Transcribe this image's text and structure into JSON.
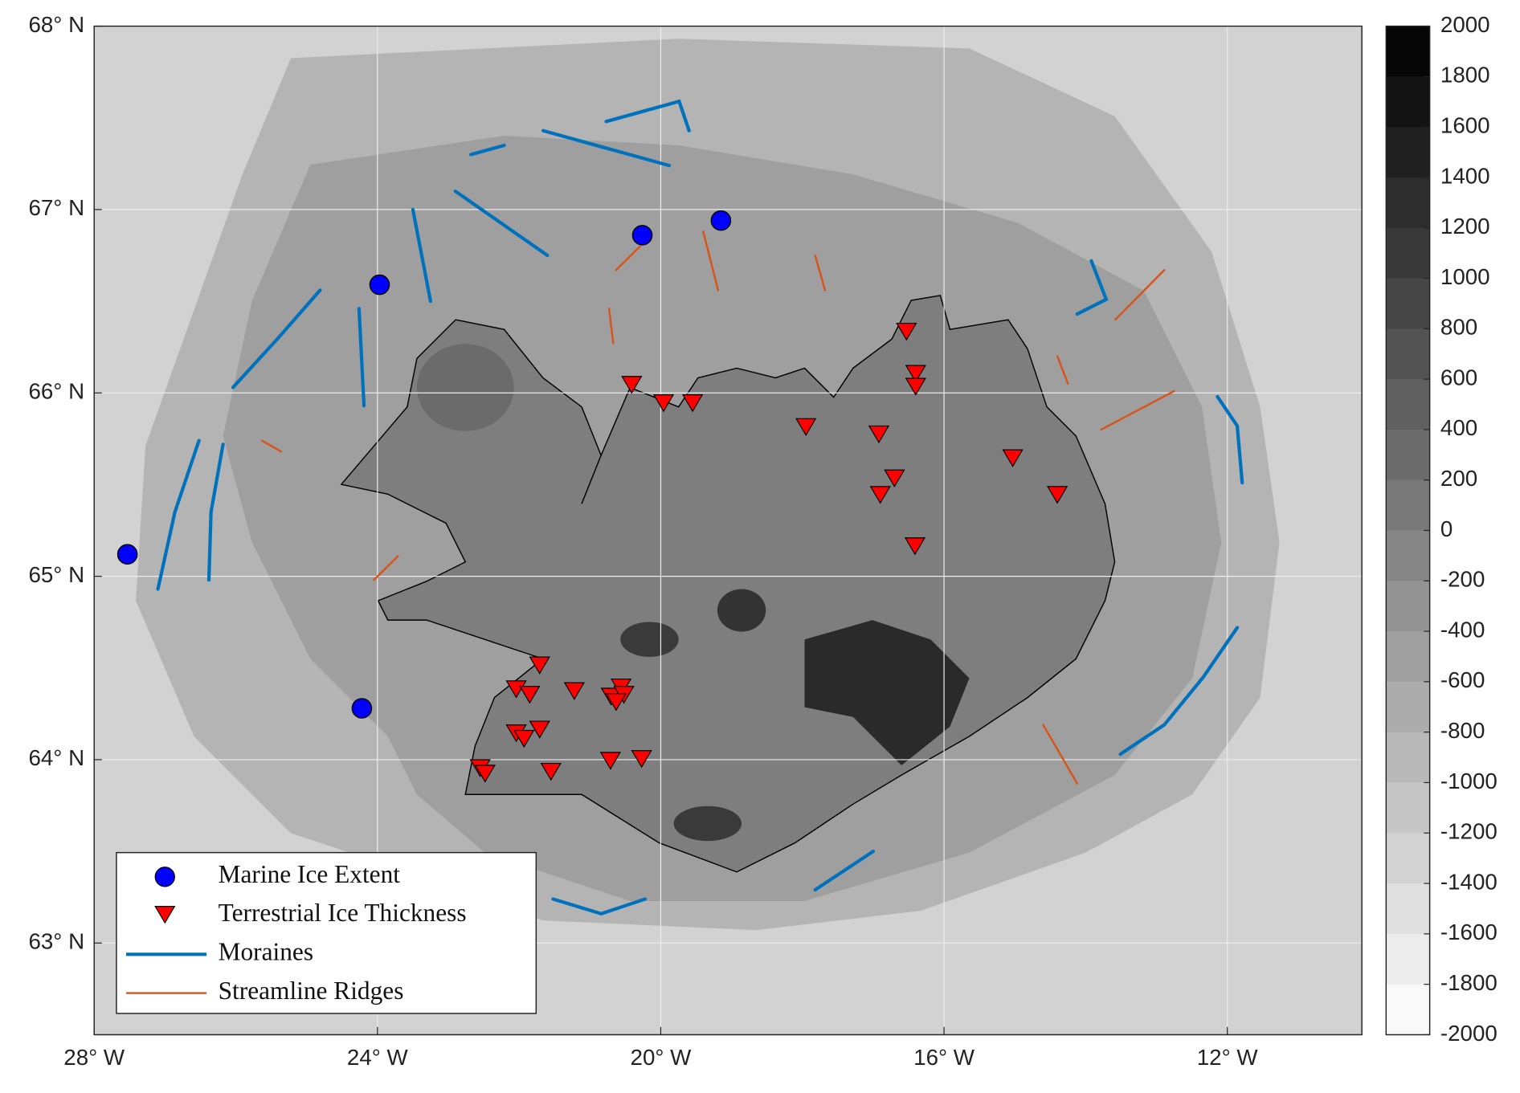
{
  "chart_data": {
    "type": "map",
    "xlim": [
      -28,
      -10.1
    ],
    "ylim": [
      62.5,
      68
    ],
    "xticks": [
      {
        "value": -28,
        "label": "28° W"
      },
      {
        "value": -24,
        "label": "24° W"
      },
      {
        "value": -20,
        "label": "20° W"
      },
      {
        "value": -16,
        "label": "16° W"
      },
      {
        "value": -12,
        "label": "12° W"
      }
    ],
    "yticks": [
      {
        "value": 63,
        "label": "63° N"
      },
      {
        "value": 64,
        "label": "64° N"
      },
      {
        "value": 65,
        "label": "65° N"
      },
      {
        "value": 66,
        "label": "66° N"
      },
      {
        "value": 67,
        "label": "67° N"
      },
      {
        "value": 68,
        "label": "68° N"
      }
    ],
    "grid": true,
    "legend": "lower left",
    "series": [
      {
        "name": "Marine Ice Extent",
        "marker": "circle",
        "color": "#0000ff",
        "x": [
          -27.53,
          -23.97,
          -20.26,
          -19.15,
          -24.22
        ],
        "y": [
          65.12,
          66.59,
          66.86,
          66.94,
          64.28
        ]
      },
      {
        "name": "Terrestrial Ice Thickness",
        "marker": "triangle",
        "color": "#ff0000",
        "x": [
          -16.53,
          -16.4,
          -16.4,
          -20.41,
          -19.96,
          -19.55,
          -17.95,
          -16.92,
          -16.7,
          -16.9,
          -15.03,
          -14.4,
          -16.41,
          -21.71,
          -22.04,
          -21.85,
          -21.22,
          -20.7,
          -20.56,
          -20.52,
          -20.63,
          -22.04,
          -21.71,
          -21.93,
          -22.55,
          -22.48,
          -21.55,
          -20.71,
          -20.27
        ],
        "y": [
          66.34,
          66.11,
          66.04,
          66.05,
          65.95,
          65.95,
          65.82,
          65.78,
          65.54,
          65.45,
          65.65,
          65.45,
          65.17,
          64.52,
          64.39,
          64.36,
          64.38,
          64.35,
          64.4,
          64.36,
          64.32,
          64.15,
          64.17,
          64.12,
          63.96,
          63.93,
          63.94,
          64.0,
          64.01
        ]
      },
      {
        "name": "Moraines",
        "marker": "line",
        "color": "#0072bd",
        "segments": [
          {
            "x": [
              -26.52,
              -26.86,
              -27.1
            ],
            "y": [
              65.74,
              65.35,
              64.93
            ]
          },
          {
            "x": [
              -26.18,
              -26.35,
              -26.38
            ],
            "y": [
              65.72,
              65.35,
              64.98
            ]
          },
          {
            "x": [
              -26.04,
              -25.4,
              -24.81
            ],
            "y": [
              66.03,
              66.3,
              66.56
            ]
          },
          {
            "x": [
              -20.77,
              -19.74,
              -19.6
            ],
            "y": [
              67.48,
              67.59,
              67.43
            ]
          },
          {
            "x": [
              -21.66,
              -19.88
            ],
            "y": [
              67.43,
              67.24
            ]
          },
          {
            "x": [
              -22.68,
              -22.21
            ],
            "y": [
              67.3,
              67.35
            ]
          },
          {
            "x": [
              -24.26,
              -24.19
            ],
            "y": [
              66.46,
              65.93
            ]
          },
          {
            "x": [
              -13.92,
              -13.71,
              -14.12
            ],
            "y": [
              66.72,
              66.51,
              66.43
            ]
          },
          {
            "x": [
              -12.14,
              -11.86,
              -11.79
            ],
            "y": [
              65.98,
              65.82,
              65.51
            ]
          },
          {
            "x": [
              -11.86,
              -12.34,
              -12.89,
              -13.51
            ],
            "y": [
              64.72,
              64.45,
              64.19,
              64.03
            ]
          },
          {
            "x": [
              -21.52,
              -20.84,
              -20.22
            ],
            "y": [
              63.24,
              63.16,
              63.24
            ]
          },
          {
            "x": [
              -17.82,
              -17.0
            ],
            "y": [
              63.29,
              63.5
            ]
          },
          {
            "x": [
              -22.9,
              -21.6
            ],
            "y": [
              67.1,
              66.75
            ]
          },
          {
            "x": [
              -23.5,
              -23.25
            ],
            "y": [
              67.0,
              66.5
            ]
          }
        ]
      },
      {
        "name": "Streamline Ridges",
        "marker": "line",
        "color": "#d95319",
        "segments": [
          {
            "x": [
              -20.73,
              -20.67
            ],
            "y": [
              66.46,
              66.27
            ]
          },
          {
            "x": [
              -19.4,
              -19.19
            ],
            "y": [
              66.88,
              66.56
            ]
          },
          {
            "x": [
              -20.63,
              -20.29
            ],
            "y": [
              66.67,
              66.8
            ]
          },
          {
            "x": [
              -13.58,
              -12.89
            ],
            "y": [
              66.4,
              66.67
            ]
          },
          {
            "x": [
              -13.78,
              -12.75
            ],
            "y": [
              65.8,
              66.01
            ]
          },
          {
            "x": [
              -24.05,
              -23.71
            ],
            "y": [
              64.98,
              65.11
            ]
          },
          {
            "x": [
              -14.6,
              -14.12
            ],
            "y": [
              64.19,
              63.87
            ]
          },
          {
            "x": [
              -17.82,
              -17.68
            ],
            "y": [
              66.75,
              66.56
            ]
          },
          {
            "x": [
              -25.63,
              -25.36
            ],
            "y": [
              65.74,
              65.68
            ]
          },
          {
            "x": [
              -14.4,
              -14.25
            ],
            "y": [
              66.2,
              66.05
            ]
          }
        ]
      }
    ],
    "colorbar": {
      "clim": [
        -2000,
        2000
      ],
      "ticks": [
        2000,
        1800,
        1600,
        1400,
        1200,
        1000,
        800,
        600,
        400,
        200,
        0,
        -200,
        -400,
        -600,
        -800,
        -1000,
        -1200,
        -1400,
        -1600,
        -1800,
        -2000
      ]
    }
  }
}
